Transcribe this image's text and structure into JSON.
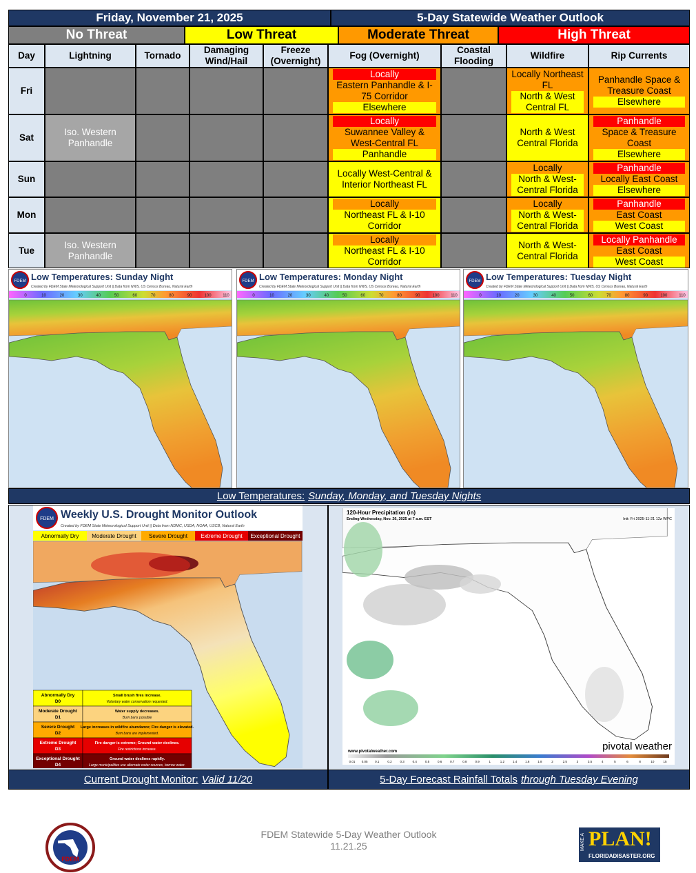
{
  "header": {
    "date": "Friday, November 21, 2025",
    "title": "5-Day Statewide Weather Outlook"
  },
  "threat_levels": [
    {
      "label": "No Threat",
      "color": "#7f7f7f",
      "text_color": "#ffffff"
    },
    {
      "label": "Low Threat",
      "color": "#ffff00",
      "text_color": "#000000"
    },
    {
      "label": "Moderate Threat",
      "color": "#ff9900",
      "text_color": "#000000"
    },
    {
      "label": "High Threat",
      "color": "#ff0000",
      "text_color": "#ffffff"
    }
  ],
  "table": {
    "columns": [
      "Day",
      "Lightning",
      "Tornado",
      "Damaging Wind/Hail",
      "Freeze (Overnight)",
      "Fog (Overnight)",
      "Coastal Flooding",
      "Wildfire",
      "Rip Currents"
    ],
    "rows": [
      {
        "day": "Fri",
        "cells": [
          null,
          null,
          null,
          null,
          {
            "bg": "#ff9900",
            "lines": [
              {
                "text": "Locally",
                "bg": "#ff0000",
                "color": "#ffffff"
              },
              {
                "text": "Eastern Panhandle & I-75 Corridor",
                "bg": "#ff9900"
              },
              {
                "text": "Elsewhere",
                "bg": "#ffff00"
              }
            ]
          },
          null,
          {
            "bg": "#ff9900",
            "lines": [
              {
                "text": "Locally Northeast FL",
                "bg": "#ff9900"
              },
              {
                "text": "North & West Central FL",
                "bg": "#ffff00"
              }
            ]
          },
          {
            "bg": "#ff9900",
            "lines": [
              {
                "text": "Panhandle Space & Treasure Coast",
                "bg": "#ff9900"
              },
              {
                "text": "Elsewhere",
                "bg": "#ffff00"
              }
            ]
          }
        ]
      },
      {
        "day": "Sat",
        "cells": [
          {
            "bg": "#a6a6a6",
            "lines": [
              {
                "text": "Iso. Western Panhandle",
                "color": "#ffffff"
              }
            ]
          },
          null,
          null,
          null,
          {
            "bg": "#ff9900",
            "lines": [
              {
                "text": "Locally",
                "bg": "#ff0000",
                "color": "#ffffff"
              },
              {
                "text": "Suwannee Valley & West-Central FL",
                "bg": "#ff9900"
              },
              {
                "text": "Panhandle",
                "bg": "#ffff00"
              }
            ]
          },
          null,
          {
            "bg": "#ffff00",
            "lines": [
              {
                "text": "North & West Central Florida",
                "bg": "#ffff00"
              }
            ]
          },
          {
            "bg": "#ff9900",
            "lines": [
              {
                "text": "Panhandle",
                "bg": "#ff0000",
                "color": "#ffffff"
              },
              {
                "text": "Space & Treasure Coast",
                "bg": "#ff9900"
              },
              {
                "text": "Elsewhere",
                "bg": "#ffff00"
              }
            ]
          }
        ]
      },
      {
        "day": "Sun",
        "cells": [
          null,
          null,
          null,
          null,
          {
            "bg": "#ffff00",
            "lines": [
              {
                "text": "Locally West-Central & Interior Northeast FL",
                "bg": "#ffff00"
              }
            ]
          },
          null,
          {
            "bg": "#ff9900",
            "lines": [
              {
                "text": "Locally",
                "bg": "#ff9900"
              },
              {
                "text": "North & West-Central Florida",
                "bg": "#ffff00"
              }
            ]
          },
          {
            "bg": "#ff9900",
            "lines": [
              {
                "text": "Panhandle",
                "bg": "#ff0000",
                "color": "#ffffff"
              },
              {
                "text": "Locally East Coast",
                "bg": "#ff9900"
              },
              {
                "text": "Elsewhere",
                "bg": "#ffff00"
              }
            ]
          }
        ]
      },
      {
        "day": "Mon",
        "cells": [
          null,
          null,
          null,
          null,
          {
            "bg": "#ffff00",
            "lines": [
              {
                "text": "Locally",
                "bg": "#ff9900"
              },
              {
                "text": "Northeast FL & I-10 Corridor",
                "bg": "#ffff00"
              }
            ]
          },
          null,
          {
            "bg": "#ff9900",
            "lines": [
              {
                "text": "Locally",
                "bg": "#ff9900"
              },
              {
                "text": "North & West-Central Florida",
                "bg": "#ffff00"
              }
            ]
          },
          {
            "bg": "#ff9900",
            "lines": [
              {
                "text": "Panhandle",
                "bg": "#ff0000",
                "color": "#ffffff"
              },
              {
                "text": "East Coast",
                "bg": "#ff9900"
              },
              {
                "text": "West Coast",
                "bg": "#ffff00"
              }
            ]
          }
        ]
      },
      {
        "day": "Tue",
        "cells": [
          {
            "bg": "#a6a6a6",
            "lines": [
              {
                "text": "Iso. Western Panhandle",
                "color": "#ffffff"
              }
            ]
          },
          null,
          null,
          null,
          {
            "bg": "#ffff00",
            "lines": [
              {
                "text": "Locally",
                "bg": "#ff9900"
              },
              {
                "text": "Northeast FL & I-10 Corridor",
                "bg": "#ffff00"
              }
            ]
          },
          null,
          {
            "bg": "#ffff00",
            "lines": [
              {
                "text": "North & West-Central Florida",
                "bg": "#ffff00"
              }
            ]
          },
          {
            "bg": "#ff9900",
            "lines": [
              {
                "text": "Locally Panhandle",
                "bg": "#ff0000",
                "color": "#ffffff"
              },
              {
                "text": "East Coast",
                "bg": "#ff9900"
              },
              {
                "text": "West Coast",
                "bg": "#ffff00"
              }
            ]
          }
        ]
      }
    ]
  },
  "temperature_maps": {
    "caption_prefix": "Low Temperatures:",
    "caption_italic": "Sunday, Monday, and Tuesday Nights",
    "credit": "Created by FDEM State Meteorological Support Unit || Data from NWS, US Census Bureau, Natural Earth",
    "badge": "FDEM",
    "scale": [
      0,
      10,
      20,
      30,
      40,
      50,
      60,
      70,
      80,
      90,
      100,
      110
    ],
    "maps": [
      {
        "title": "Low Temperatures: Sunday Night"
      },
      {
        "title": "Low Temperatures: Monday Night"
      },
      {
        "title": "Low Temperatures: Tuesday Night"
      }
    ]
  },
  "drought": {
    "title": "Weekly U.S. Drought Monitor Outlook",
    "credit": "Created by FDEM State Meteorological Support Unit || Data from NDMC, USDA, NOAA, USCB, Natural Earth",
    "badge": "FDEM",
    "categories": [
      {
        "name": "Abnormally Dry",
        "code": "D0",
        "color": "#ffff00",
        "impact": "Small brush fires increase.",
        "note": "Voluntary water conservation requested."
      },
      {
        "name": "Moderate Drought",
        "code": "D1",
        "color": "#fcd37f",
        "impact": "Water supply decreases.",
        "note": "Burn bans possible"
      },
      {
        "name": "Severe Drought",
        "code": "D2",
        "color": "#ffaa00",
        "impact": "Large increases in wildfire abundance; Fire danger is elevated.",
        "note": "Burn bans are implemented."
      },
      {
        "name": "Extreme Drought",
        "code": "D3",
        "color": "#e60000",
        "impact": "Fire danger is extreme; Ground water declines.",
        "note": "Fire restrictions increase."
      },
      {
        "name": "Exceptional Drought",
        "code": "D4",
        "color": "#730000",
        "impact": "Ground water declines rapidly.",
        "note": "Large municipalities use alternate water sources, borrow water."
      }
    ],
    "caption_prefix": "Current Drought Monitor:",
    "caption_italic": "Valid 11/20"
  },
  "rainfall": {
    "title": "120-Hour Precipitation (in)",
    "subtitle": "Ending Wednesday, Nov. 26, 2025 at 7 a.m. EST",
    "init": "Init: Fri 2025-11-21 12z WPC",
    "site": "www.pivotalweather.com",
    "brand": "pivotal weather",
    "scale": [
      "0.01",
      "0.05",
      "0.1",
      "0.2",
      "0.3",
      "0.4",
      "0.5",
      "0.6",
      "0.7",
      "0.8",
      "0.9",
      "1",
      "1.2",
      "1.4",
      "1.6",
      "1.8",
      "2",
      "2.5",
      "3",
      "3.5",
      "4",
      "5",
      "6",
      "8",
      "10",
      "15"
    ],
    "caption_prefix": "5-Day Forecast Rainfall Totals",
    "caption_italic": "through Tuesday Evening"
  },
  "footer": {
    "line1": "FDEM Statewide 5-Day Weather Outlook",
    "line2": "11.21.25",
    "logo_left": "FDEM",
    "logo_right_small": "MAKE A",
    "logo_right_big": "PLAN!",
    "logo_right_url": "FLORIDADISASTER.ORG"
  }
}
